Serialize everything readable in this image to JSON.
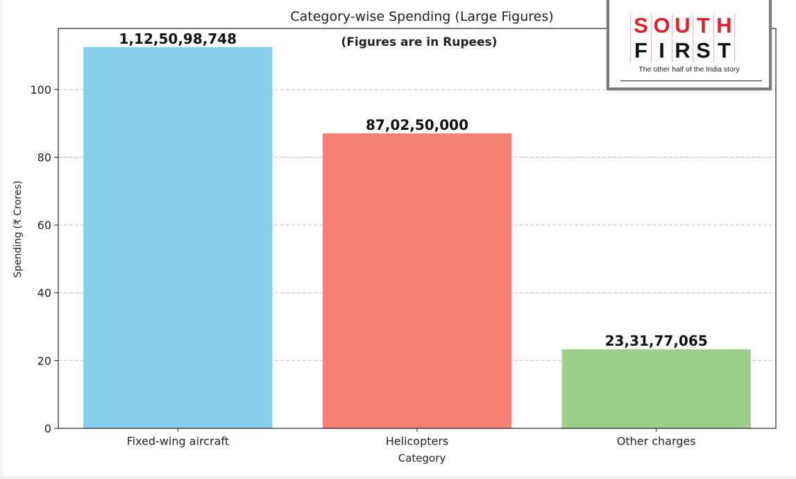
{
  "chart_data": {
    "type": "bar",
    "title": "Category-wise Spending (Large Figures)",
    "subtitle": "(Figures are in Rupees)",
    "xlabel": "Category",
    "ylabel": "Spending (₹ Crores)",
    "categories": [
      "Fixed-wing aircraft",
      "Helicopters",
      "Other charges"
    ],
    "values": [
      112.5098748,
      87.025,
      23.3177065
    ],
    "data_labels": [
      "1,12,50,98,748",
      "87,02,50,000",
      "23,31,77,065"
    ],
    "colors": [
      "#87ceeb",
      "#f47f72",
      "#9ccf87"
    ],
    "ylim": [
      0,
      118
    ],
    "yticks": [
      0,
      20,
      40,
      60,
      80,
      100
    ],
    "grid": "y-dashed",
    "legend": "none"
  },
  "logo": {
    "top_letters": [
      "S",
      "O",
      "U",
      "T",
      "H"
    ],
    "bottom_letters": [
      "F",
      "I",
      "R",
      "S",
      "T"
    ],
    "tagline": "The other half of the India story"
  }
}
